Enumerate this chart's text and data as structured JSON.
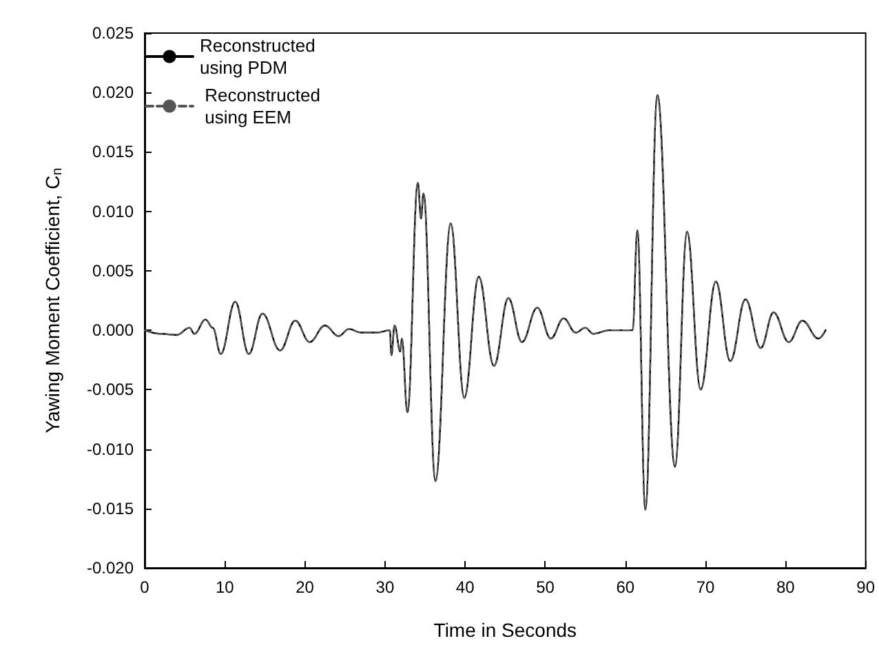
{
  "chart_data": {
    "type": "line",
    "xlabel": "Time in Seconds",
    "ylabel": "Yawing Moment Coefficient, C$_{n}$",
    "xlim": [
      0,
      90
    ],
    "xticks": [
      0,
      10,
      20,
      30,
      40,
      50,
      60,
      70,
      80,
      90
    ],
    "ylim": [
      -0.02,
      0.025
    ],
    "yticks": [
      {
        "value": -0.02,
        "label": "-0.020"
      },
      {
        "value": -0.015,
        "label": "-0.015"
      },
      {
        "value": -0.01,
        "label": "-0.010"
      },
      {
        "value": -0.005,
        "label": "-0.005"
      },
      {
        "value": 0,
        "label": "0.000"
      },
      {
        "value": 0.005,
        "label": "0.005"
      },
      {
        "value": 0.01,
        "label": "0.010"
      },
      {
        "value": 0.015,
        "label": "0.015"
      },
      {
        "value": 0.02,
        "label": "0.020"
      },
      {
        "value": 0.025,
        "label": "0.025"
      }
    ],
    "grid": false,
    "legend": "top left",
    "marker": "none",
    "x": [
      0,
      2,
      4,
      5.6,
      6.2,
      7.6,
      8.5,
      9.5,
      11.3,
      13,
      14.7,
      16.9,
      18.8,
      20.6,
      22.5,
      24.2,
      25.5,
      27,
      29,
      30.6,
      30.8,
      31.2,
      31.9,
      32.1,
      32.8,
      34.1,
      34.5,
      34.8,
      36.3,
      38.2,
      39.9,
      41.7,
      43.6,
      45.4,
      47.1,
      49,
      50.7,
      52.3,
      53.8,
      55,
      56,
      58,
      60.9,
      61.5,
      62.5,
      64,
      66.2,
      67.7,
      69.4,
      71.3,
      73.1,
      75,
      76.9,
      78.5,
      80.4,
      82.1,
      84.1,
      85
    ],
    "series": [
      {
        "name": "Reconstructed\nusing PDM",
        "color": "#000000",
        "line_style": "solid",
        "values": [
          0,
          -0.0003,
          -0.0004,
          0.0002,
          -0.0003,
          0.0009,
          0.0002,
          -0.002,
          0.0024,
          -0.002,
          0.0014,
          -0.0017,
          0.0008,
          -0.001,
          0.0004,
          -0.0005,
          0.0001,
          -0.0002,
          -0.0002,
          0,
          -0.0021,
          0.0004,
          -0.0018,
          -0.0007,
          -0.0069,
          0.0124,
          0.0094,
          0.0115,
          -0.0127,
          0.009,
          -0.0057,
          0.0045,
          -0.003,
          0.0027,
          -0.001,
          0.0019,
          -0.0007,
          0.001,
          -0.0002,
          0.0002,
          -0.0003,
          0,
          0,
          0.0084,
          -0.0151,
          0.0198,
          -0.0115,
          0.0083,
          -0.005,
          0.0041,
          -0.0026,
          0.0026,
          -0.0015,
          0.0015,
          -0.001,
          0.0008,
          -0.0007,
          0
        ]
      },
      {
        "name": " Reconstructed\n using EEM",
        "color": "#555555",
        "line_style": "dashed",
        "values": [
          0,
          -0.0003,
          -0.0004,
          0.0002,
          -0.0003,
          0.0009,
          0.0002,
          -0.002,
          0.0024,
          -0.002,
          0.0014,
          -0.0017,
          0.0008,
          -0.001,
          0.0004,
          -0.0005,
          0.0001,
          -0.0002,
          -0.0002,
          0,
          -0.0021,
          0.0004,
          -0.0018,
          -0.0007,
          -0.0069,
          0.0124,
          0.0094,
          0.0115,
          -0.0127,
          0.009,
          -0.0057,
          0.0045,
          -0.003,
          0.0027,
          -0.001,
          0.0019,
          -0.0007,
          0.001,
          -0.0002,
          0.0002,
          -0.0003,
          0,
          0,
          0.0084,
          -0.0151,
          0.0198,
          -0.0115,
          0.0083,
          -0.005,
          0.0041,
          -0.0026,
          0.0026,
          -0.0015,
          0.0015,
          -0.001,
          0.0008,
          -0.0007,
          0
        ]
      }
    ]
  }
}
